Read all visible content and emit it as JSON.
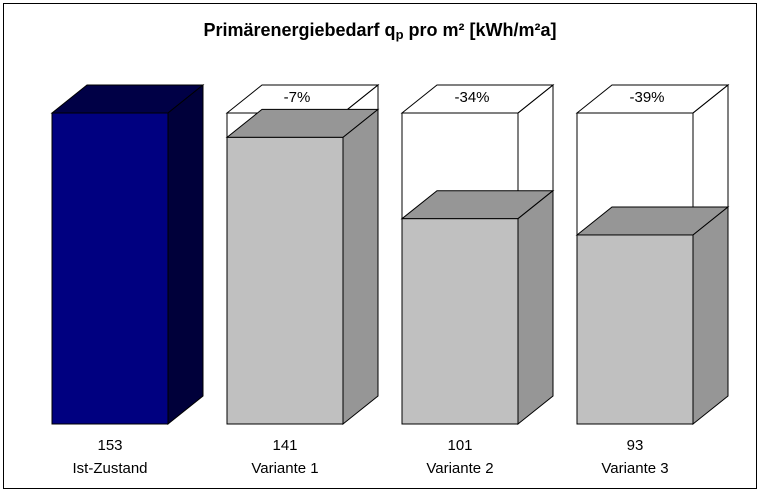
{
  "chart_data": {
    "type": "bar3d",
    "title": {
      "main": "Primärenergiebedarf q",
      "subscript": "p",
      "rest": " pro m²  [kWh/m²a]"
    },
    "categories": [
      "Ist-Zustand",
      "Variante 1",
      "Variante 2",
      "Variante 3"
    ],
    "values": [
      153,
      141,
      101,
      93
    ],
    "annotations": [
      null,
      "-7%",
      "-34%",
      "-39%"
    ],
    "colors": [
      "#000080",
      "#c0c0c0",
      "#c0c0c0",
      "#c0c0c0"
    ]
  }
}
